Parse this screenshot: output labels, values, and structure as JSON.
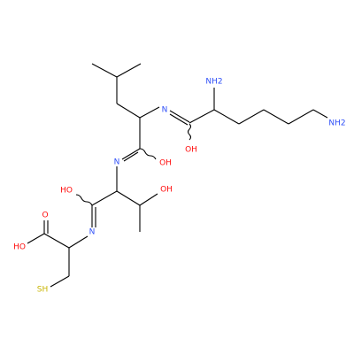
{
  "atoms": [
    {
      "label": "NH2"
    },
    {
      "label": "NH2"
    },
    {
      "label": "N"
    },
    {
      "label": "OH"
    },
    {
      "label": "N"
    },
    {
      "label": "OH"
    },
    {
      "label": "HO"
    },
    {
      "label": "OH"
    },
    {
      "label": "N"
    },
    {
      "label": "O"
    },
    {
      "label": "HO"
    },
    {
      "label": "SH"
    }
  ]
}
